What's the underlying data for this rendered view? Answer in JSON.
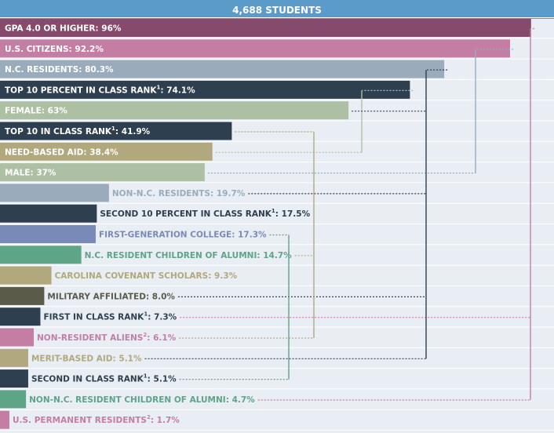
{
  "chart_data": {
    "type": "bar",
    "title": "4,688 STUDENTS",
    "xlim": [
      0,
      100
    ],
    "title_color": "#5b9bc9",
    "background_color": "#e8eef4",
    "row_line_color": "#ffffff",
    "bars": [
      {
        "text": "GPA 4.0 OR HIGHER",
        "sup": "",
        "value_label": "96%",
        "value": 96,
        "color": "#864a6c",
        "label_inside": true
      },
      {
        "text": "U.S. CITIZENS",
        "sup": "",
        "value_label": "92.2%",
        "value": 92.2,
        "color": "#c47da3",
        "label_inside": true
      },
      {
        "text": "N.C. RESIDENTS",
        "sup": "",
        "value_label": "80.3%",
        "value": 80.3,
        "color": "#9aacbc",
        "label_inside": true
      },
      {
        "text": "TOP 10 PERCENT IN CLASS RANK",
        "sup": "1",
        "value_label": "74.1%",
        "value": 74.1,
        "color": "#2e3f4f",
        "label_inside": true
      },
      {
        "text": "FEMALE",
        "sup": "",
        "value_label": "63%",
        "value": 63,
        "color": "#aec0a4",
        "label_inside": true
      },
      {
        "text": "TOP 10 IN CLASS RANK",
        "sup": "1",
        "value_label": "41.9%",
        "value": 41.9,
        "color": "#2e3f4f",
        "label_inside": true
      },
      {
        "text": "NEED-BASED AID",
        "sup": "",
        "value_label": "38.4%",
        "value": 38.4,
        "color": "#b1a97d",
        "label_inside": true
      },
      {
        "text": "MALE",
        "sup": "",
        "value_label": "37%",
        "value": 37,
        "color": "#aec0a4",
        "label_inside": true
      },
      {
        "text": "NON-N.C. RESIDENTS",
        "sup": "",
        "value_label": "19.7%",
        "value": 19.7,
        "color": "#9aacbc",
        "label_inside": false
      },
      {
        "text": "SECOND 10 PERCENT IN CLASS RANK",
        "sup": "1",
        "value_label": "17.5%",
        "value": 17.5,
        "color": "#2e3f4f",
        "label_inside": false
      },
      {
        "text": "FIRST-GENERATION COLLEGE",
        "sup": "",
        "value_label": "17.3%",
        "value": 17.3,
        "color": "#7a8ab8",
        "label_inside": false
      },
      {
        "text": "N.C. RESIDENT CHILDREN OF ALUMNI",
        "sup": "",
        "value_label": "14.7%",
        "value": 14.7,
        "color": "#5ea487",
        "label_inside": false
      },
      {
        "text": "CAROLINA COVENANT SCHOLARS",
        "sup": "",
        "value_label": "9.3%",
        "value": 9.3,
        "color": "#b1a97d",
        "label_inside": false
      },
      {
        "text": "MILITARY AFFILIATED",
        "sup": "",
        "value_label": "8.0%",
        "value": 8.0,
        "color": "#5b5b4a",
        "label_inside": false
      },
      {
        "text": "FIRST IN CLASS RANK",
        "sup": "1",
        "value_label": "7.3%",
        "value": 7.3,
        "color": "#2e3f4f",
        "label_inside": false
      },
      {
        "text": "NON-RESIDENT ALIENS",
        "sup": "2",
        "value_label": "6.1%",
        "value": 6.1,
        "color": "#c47da3",
        "label_inside": false
      },
      {
        "text": "MERIT-BASED AID",
        "sup": "",
        "value_label": "5.1%",
        "value": 5.1,
        "color": "#b1a97d",
        "label_inside": false
      },
      {
        "text": "SECOND IN CLASS RANK",
        "sup": "1",
        "value_label": "5.1%",
        "value": 5.1,
        "color": "#2e3f4f",
        "label_inside": false
      },
      {
        "text": "NON-N.C. RESIDENT CHILDREN OF ALUMNI",
        "sup": "",
        "value_label": "4.7%",
        "value": 4.7,
        "color": "#5ea487",
        "label_inside": false
      },
      {
        "text": "U.S. PERMANENT RESIDENTS",
        "sup": "2",
        "value_label": "1.7%",
        "value": 1.7,
        "color": "#c47da3",
        "label_inside": false
      }
    ],
    "brackets": [
      {
        "rows": [
          1,
          15,
          19
        ],
        "color": "#c47da3",
        "solid": true
      },
      {
        "rows": [
          2,
          8
        ],
        "color": "#9aacbc",
        "solid": true
      },
      {
        "rows": [
          3,
          9,
          14,
          17
        ],
        "color": "#2e3f4f",
        "solid": true
      },
      {
        "rows": [
          4,
          7
        ],
        "color": "#aec0a4",
        "solid": true
      },
      {
        "rows": [
          6,
          12,
          16
        ],
        "color": "#b1a97d",
        "solid": true
      },
      {
        "rows": [
          11,
          18
        ],
        "color": "#5ea487",
        "solid": true
      },
      {
        "rows": [
          5
        ],
        "color": "#2e3f4f",
        "solid": false
      }
    ]
  }
}
